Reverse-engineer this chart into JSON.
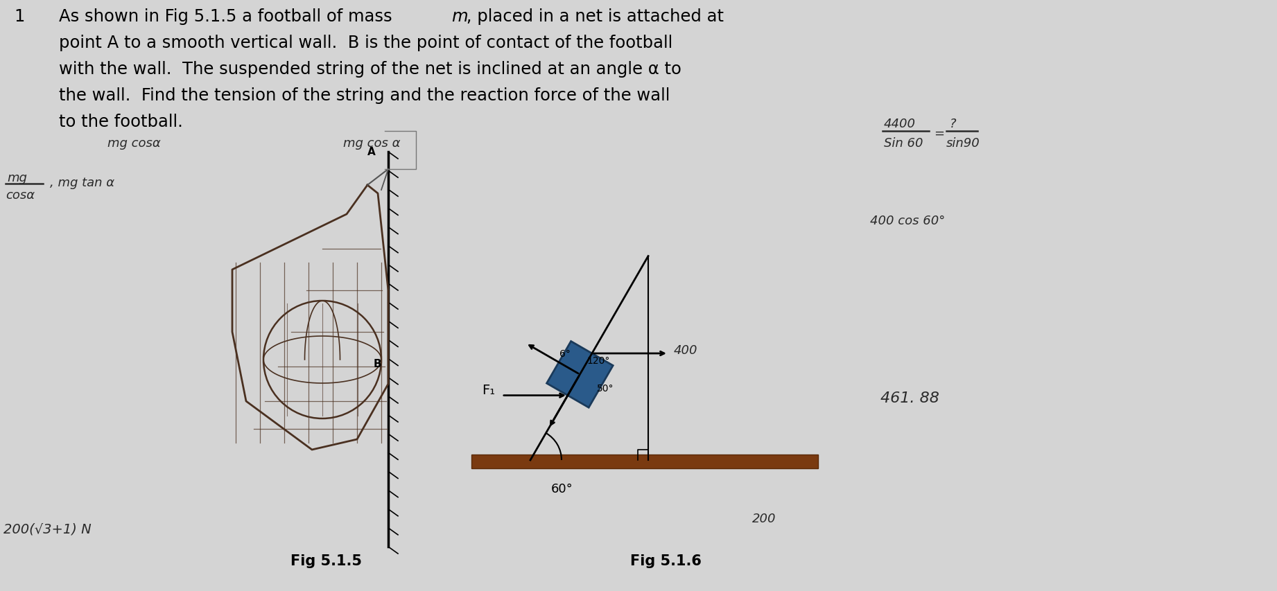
{
  "bg_color": "#d4d4d4",
  "problem_line1a": "As shown in Fig 5.1.5 a football of mass ",
  "problem_line1m": "m",
  "problem_line1b": " , placed in a net is attached at",
  "problem_line2": "point A to a smooth vertical wall.  B is the point of contact of the football",
  "problem_line3": "with the wall.  The suspended string of the net is inclined at an angle α to",
  "problem_line4": "the wall.  Find the tension of the string and the reaction force of the wall",
  "problem_line5": "to the football.",
  "hw_mgcosa_1": "mg cosα",
  "hw_mgcosa_2": "mg cos α",
  "hw_mg": "mg",
  "hw_cosa": "cosα",
  "hw_mgtana": ", mg tan α",
  "hw_4400": "4400",
  "hw_sin60": "Sin 60",
  "hw_eq": "=",
  "hw_qmark": "?",
  "hw_sin90": "sin90",
  "hw_400cos60": "400 cos 60°",
  "hw_46188": "461. 88",
  "hw_bottomleft": "200(√3+1) N",
  "hw_200": "200",
  "fig515": "Fig 5.1.5",
  "fig516": "Fig 5.1.6",
  "lbl_A": "A",
  "lbl_B": "B",
  "lbl_F1": "F₁",
  "lbl_400": "400",
  "lbl_60": "60°",
  "lbl_50": "50°",
  "lbl_120": "120°",
  "lbl_60b": "6°"
}
